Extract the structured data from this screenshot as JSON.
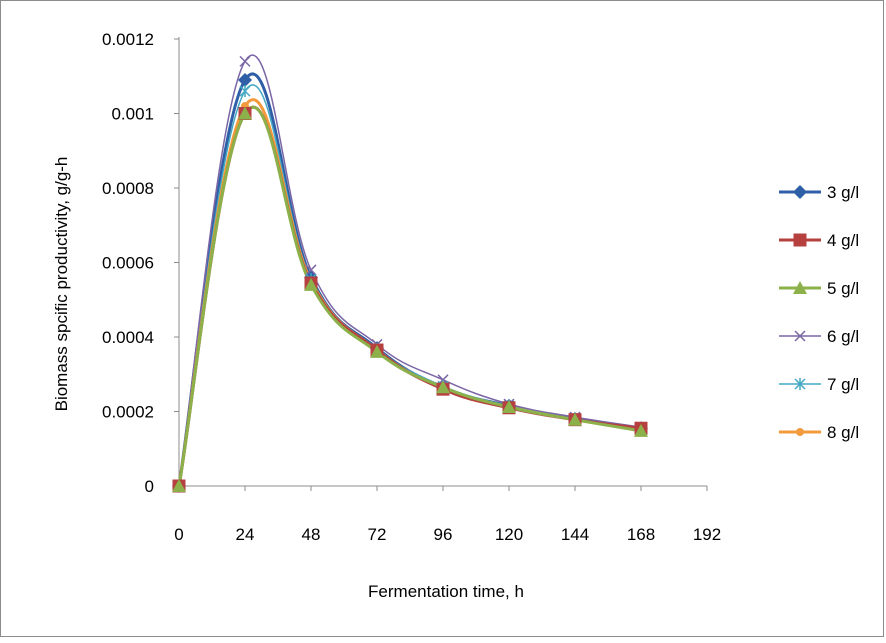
{
  "chart_data": {
    "type": "line",
    "title": "",
    "xlabel": "Fermentation time, h",
    "ylabel": "Biomass spcific productivity, g/g-h",
    "xlim": [
      0,
      192
    ],
    "ylim": [
      0,
      0.0012
    ],
    "x_ticks": [
      "0",
      "24",
      "48",
      "72",
      "96",
      "120",
      "144",
      "168",
      "192"
    ],
    "y_ticks": [
      "0",
      "0.0002",
      "0.0004",
      "0.0006",
      "0.0008",
      "0.001",
      "0.0012"
    ],
    "grid": false,
    "legend_position": "right",
    "smooth": true,
    "x": [
      0,
      24,
      48,
      72,
      96,
      120,
      144,
      168
    ],
    "series": [
      {
        "name": "3 g/l",
        "color": "#2f5fa6",
        "marker": "diamond",
        "values": [
          0,
          0.00109,
          0.00056,
          0.00037,
          0.000265,
          0.000215,
          0.00018,
          0.000155
        ]
      },
      {
        "name": "4 g/l",
        "color": "#b5403f",
        "marker": "square",
        "values": [
          0,
          0.001,
          0.000545,
          0.000365,
          0.00026,
          0.00021,
          0.000178,
          0.000155
        ]
      },
      {
        "name": "5 g/l",
        "color": "#8db14a",
        "marker": "triangle",
        "values": [
          0,
          0.001,
          0.00054,
          0.00036,
          0.000265,
          0.000212,
          0.000178,
          0.000148
        ]
      },
      {
        "name": "6 g/l",
        "color": "#7b66a6",
        "marker": "x",
        "values": [
          0,
          0.00114,
          0.00058,
          0.00038,
          0.000285,
          0.00022,
          0.000185,
          0.000158
        ]
      },
      {
        "name": "7 g/l",
        "color": "#45a9c4",
        "marker": "star",
        "values": [
          0,
          0.00106,
          0.000555,
          0.000368,
          0.000268,
          0.000215,
          0.00018,
          0.000152
        ]
      },
      {
        "name": "8 g/l",
        "color": "#f39a3c",
        "marker": "circle",
        "values": [
          0,
          0.00102,
          0.00055,
          0.000365,
          0.000262,
          0.000212,
          0.000178,
          0.00015
        ]
      }
    ]
  }
}
